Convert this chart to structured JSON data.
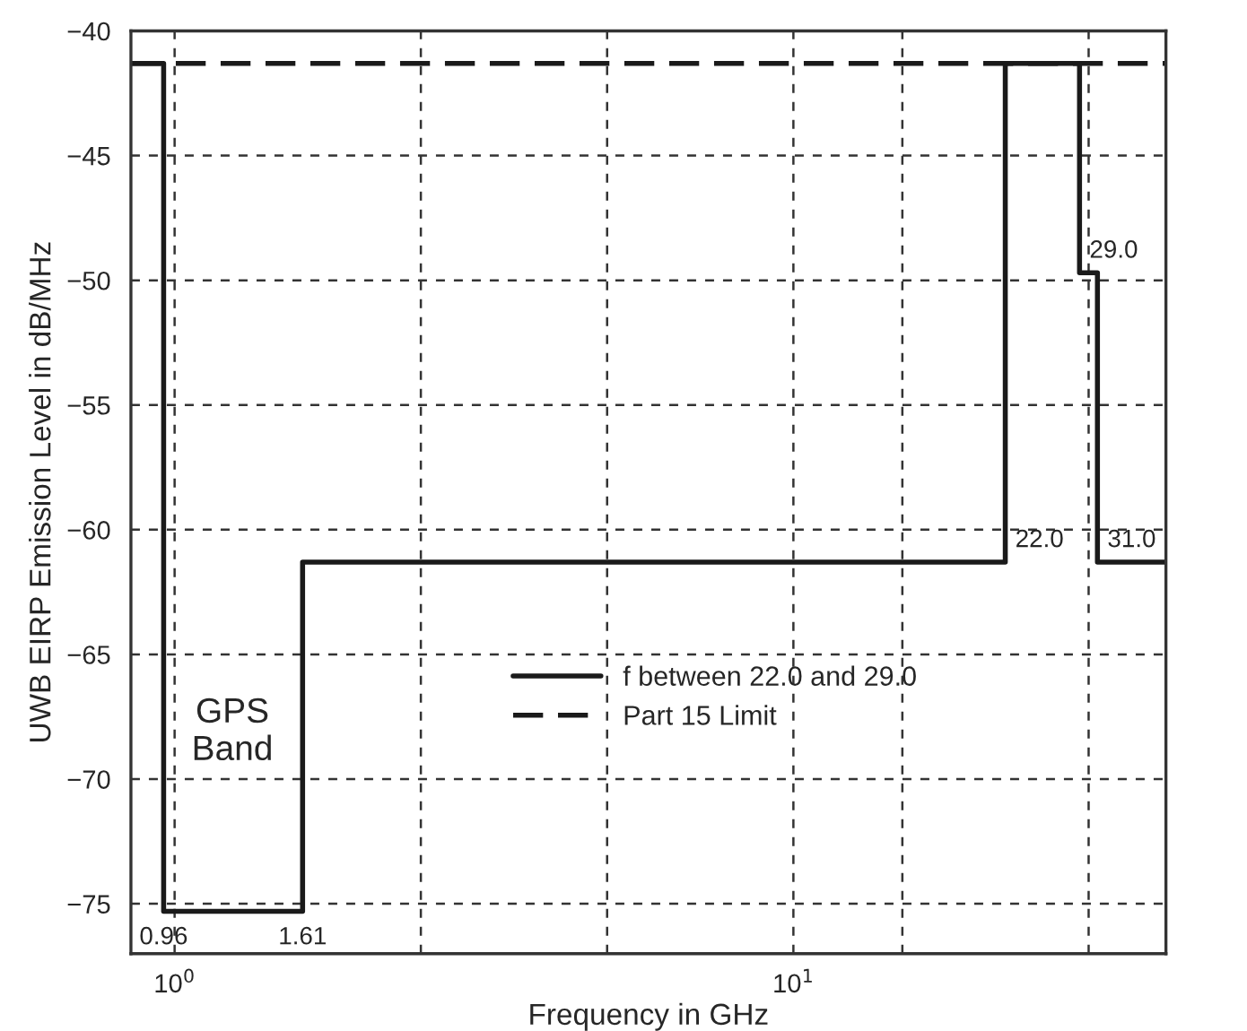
{
  "chart_data": {
    "type": "step",
    "xlabel": "Frequency in GHz",
    "ylabel": "UWB EIRP Emission Level in dB/MHz",
    "series": [
      {
        "name": "f between 22.0 and 29.0",
        "color": "#1a1a1a",
        "line_style": "solid",
        "x": [
          0.85,
          0.96,
          1.61,
          22.0,
          29.0,
          31.0,
          40
        ],
        "values": [
          -41.3,
          -75.3,
          -61.3,
          -41.3,
          -49.7,
          -61.3,
          -61.3
        ]
      },
      {
        "name": "Part 15 Limit",
        "type": "line",
        "color": "#1a1a1a",
        "line_style": "dashed",
        "x": [
          0.85,
          40
        ],
        "values": [
          -41.3,
          -41.3
        ]
      }
    ],
    "annotations": [
      {
        "text": "0.96",
        "x": 0.96,
        "y": -75.3
      },
      {
        "text": "1.61",
        "x": 1.61,
        "y": -75.3
      },
      {
        "text": "22.0",
        "x": 22.0,
        "y": -61.3
      },
      {
        "text": "29.0",
        "x": 29.0,
        "y": -49.7
      },
      {
        "text": "31.0",
        "x": 31.0,
        "y": -61.3
      },
      "GPS\nBand"
    ],
    "log": "x",
    "xlim": [
      0.85,
      40
    ],
    "ylim": [
      -77,
      -40
    ],
    "xticks": [
      {
        "value": 1,
        "label": "10$^{0}$"
      },
      {
        "value": 2.5,
        "label": null
      },
      {
        "value": 5,
        "label": null
      },
      {
        "value": 10,
        "label": "10$^{1}$"
      },
      {
        "value": 15,
        "label": null
      },
      {
        "value": 30,
        "label": null
      }
    ],
    "yticks": [
      -40,
      -45,
      -50,
      -55,
      -60,
      -65,
      -70,
      -75
    ],
    "grid": true,
    "legend": "lower right"
  }
}
